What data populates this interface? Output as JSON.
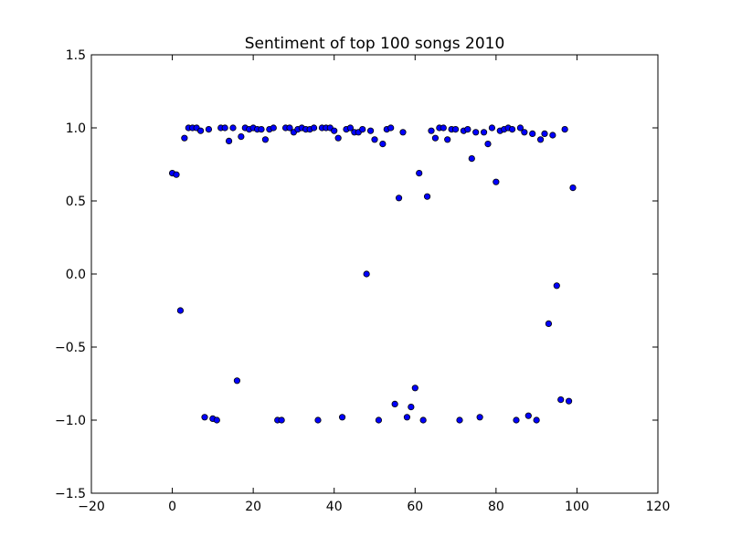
{
  "chart_data": {
    "type": "scatter",
    "title": "Sentiment of top 100 songs 2010",
    "xlabel": "",
    "ylabel": "",
    "xlim": [
      -20,
      120
    ],
    "ylim": [
      -1.5,
      1.5
    ],
    "xticks": [
      -20,
      0,
      20,
      40,
      60,
      80,
      100,
      120
    ],
    "yticks": [
      -1.5,
      -1.0,
      -0.5,
      0.0,
      0.5,
      1.0,
      1.5
    ],
    "xtick_labels": [
      "−20",
      "0",
      "20",
      "40",
      "60",
      "80",
      "100",
      "120"
    ],
    "ytick_labels": [
      "−1.5",
      "−1.0",
      "−0.5",
      "0.0",
      "0.5",
      "1.0",
      "1.5"
    ],
    "grid": false,
    "colors": {
      "marker": "#0000ff",
      "marker_edge": "#000000",
      "axes": "#000000"
    },
    "points": [
      [
        0,
        0.69
      ],
      [
        1,
        0.68
      ],
      [
        2,
        -0.25
      ],
      [
        3,
        0.93
      ],
      [
        4,
        1.0
      ],
      [
        5,
        1.0
      ],
      [
        6,
        1.0
      ],
      [
        7,
        0.98
      ],
      [
        8,
        -0.98
      ],
      [
        9,
        0.99
      ],
      [
        10,
        -0.99
      ],
      [
        11,
        -1.0
      ],
      [
        12,
        1.0
      ],
      [
        13,
        1.0
      ],
      [
        14,
        0.91
      ],
      [
        15,
        1.0
      ],
      [
        16,
        -0.73
      ],
      [
        17,
        0.94
      ],
      [
        18,
        1.0
      ],
      [
        19,
        0.99
      ],
      [
        20,
        1.0
      ],
      [
        21,
        0.99
      ],
      [
        22,
        0.99
      ],
      [
        23,
        0.92
      ],
      [
        24,
        0.99
      ],
      [
        25,
        1.0
      ],
      [
        26,
        -1.0
      ],
      [
        27,
        -1.0
      ],
      [
        28,
        1.0
      ],
      [
        29,
        1.0
      ],
      [
        30,
        0.97
      ],
      [
        31,
        0.99
      ],
      [
        32,
        1.0
      ],
      [
        33,
        0.99
      ],
      [
        34,
        0.99
      ],
      [
        35,
        1.0
      ],
      [
        36,
        -1.0
      ],
      [
        37,
        1.0
      ],
      [
        38,
        1.0
      ],
      [
        39,
        1.0
      ],
      [
        40,
        0.98
      ],
      [
        41,
        0.93
      ],
      [
        42,
        -0.98
      ],
      [
        43,
        0.99
      ],
      [
        44,
        1.0
      ],
      [
        45,
        0.97
      ],
      [
        46,
        0.97
      ],
      [
        47,
        0.99
      ],
      [
        48,
        0.0
      ],
      [
        49,
        0.98
      ],
      [
        50,
        0.92
      ],
      [
        51,
        -1.0
      ],
      [
        52,
        0.89
      ],
      [
        53,
        0.99
      ],
      [
        54,
        1.0
      ],
      [
        55,
        -0.89
      ],
      [
        56,
        0.52
      ],
      [
        57,
        0.97
      ],
      [
        58,
        -0.98
      ],
      [
        59,
        -0.91
      ],
      [
        60,
        -0.78
      ],
      [
        61,
        0.69
      ],
      [
        62,
        -1.0
      ],
      [
        63,
        0.53
      ],
      [
        64,
        0.98
      ],
      [
        65,
        0.93
      ],
      [
        66,
        1.0
      ],
      [
        67,
        1.0
      ],
      [
        68,
        0.92
      ],
      [
        69,
        0.99
      ],
      [
        70,
        0.99
      ],
      [
        71,
        -1.0
      ],
      [
        72,
        0.98
      ],
      [
        73,
        0.99
      ],
      [
        74,
        0.79
      ],
      [
        75,
        0.97
      ],
      [
        76,
        -0.98
      ],
      [
        77,
        0.97
      ],
      [
        78,
        0.89
      ],
      [
        79,
        1.0
      ],
      [
        80,
        0.63
      ],
      [
        81,
        0.98
      ],
      [
        82,
        0.99
      ],
      [
        83,
        1.0
      ],
      [
        84,
        0.99
      ],
      [
        85,
        -1.0
      ],
      [
        86,
        1.0
      ],
      [
        87,
        0.97
      ],
      [
        88,
        -0.97
      ],
      [
        89,
        0.96
      ],
      [
        90,
        -1.0
      ],
      [
        91,
        0.92
      ],
      [
        92,
        0.96
      ],
      [
        93,
        -0.34
      ],
      [
        94,
        0.95
      ],
      [
        95,
        -0.08
      ],
      [
        96,
        -0.86
      ],
      [
        97,
        0.99
      ],
      [
        98,
        -0.87
      ],
      [
        99,
        0.59
      ]
    ]
  }
}
